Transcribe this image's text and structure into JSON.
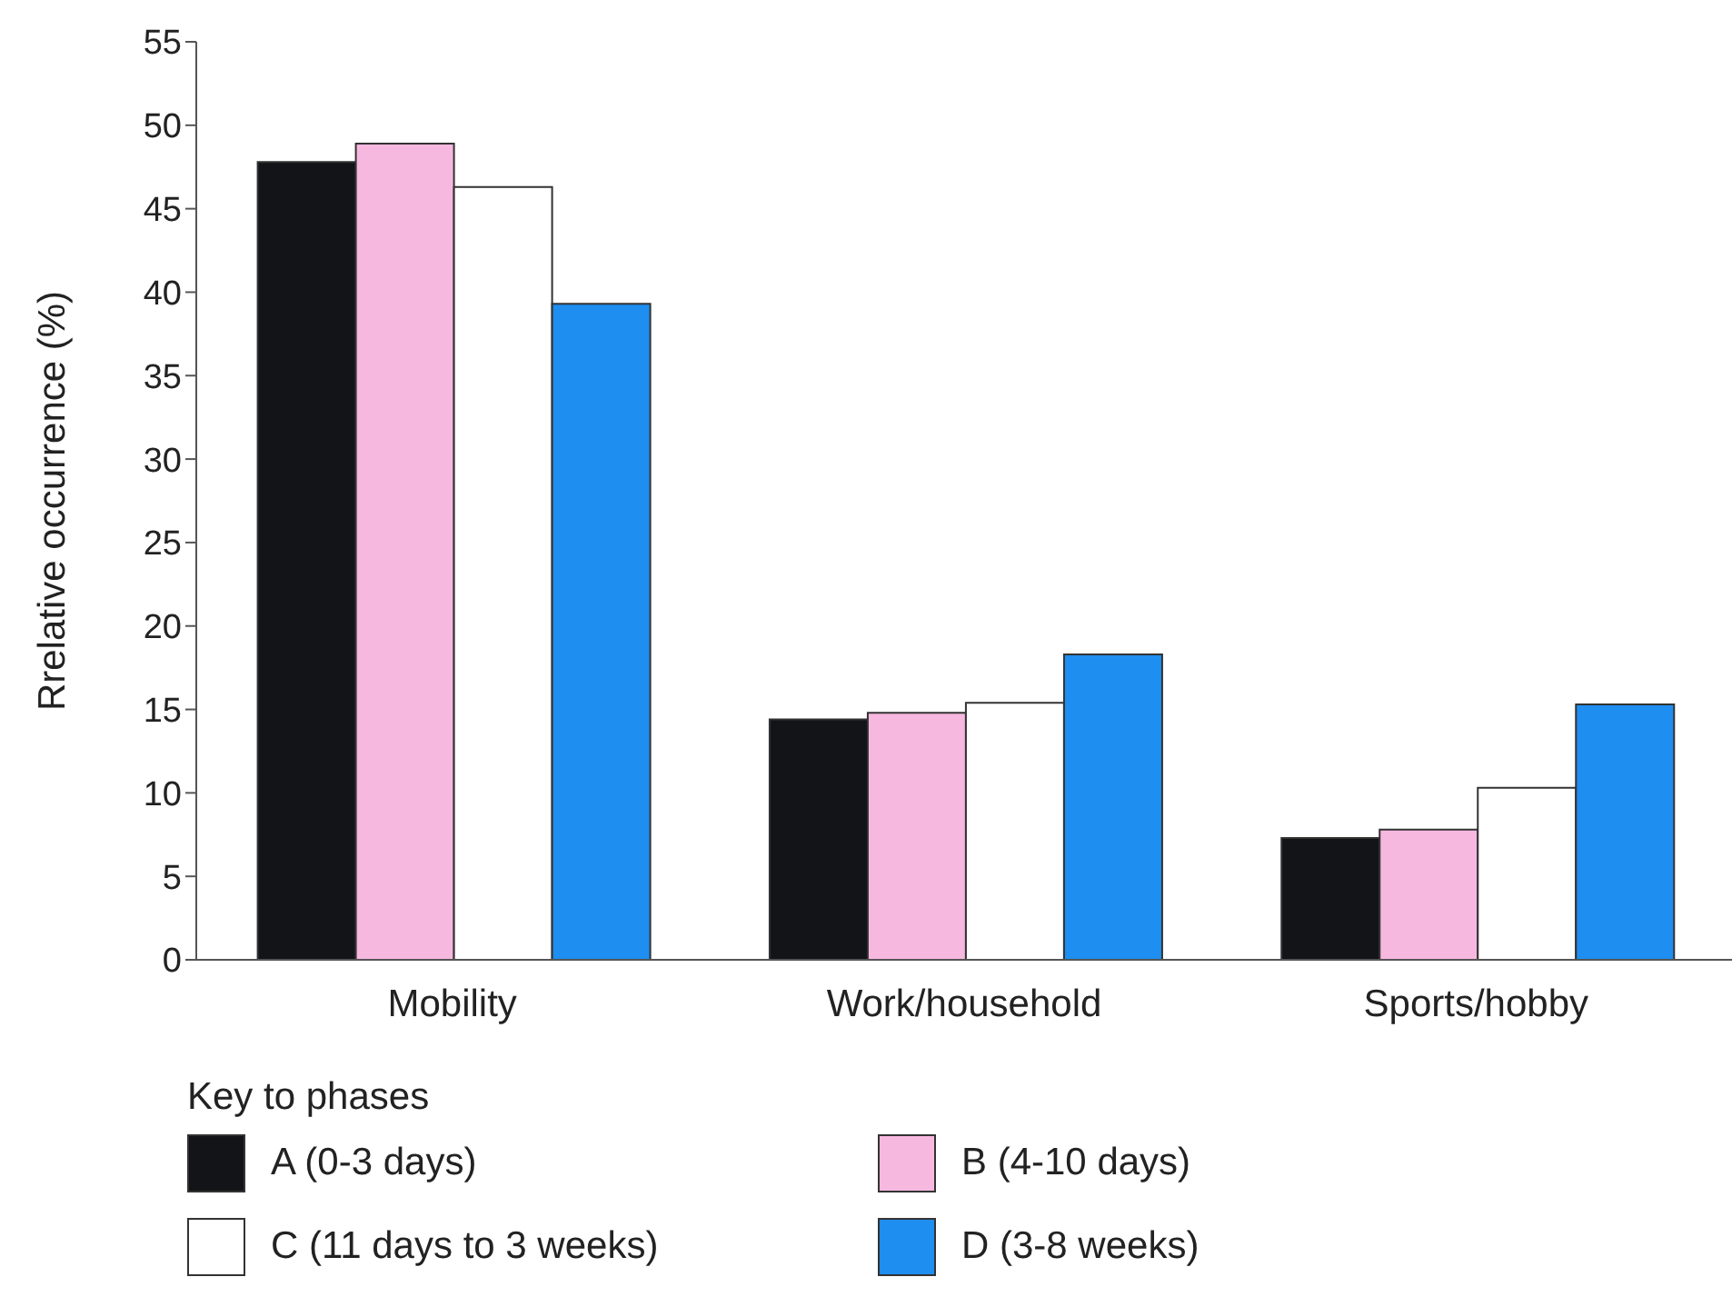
{
  "chart_data": {
    "type": "bar",
    "ylabel": "Rrelative occurrence (%)",
    "legend_title": "Key to phases",
    "categories": [
      "Mobility",
      "Work/household",
      "Sports/hobby"
    ],
    "series": [
      {
        "name": "A (0-3 days)",
        "color": "#121418",
        "values": [
          47.8,
          14.4,
          7.3
        ]
      },
      {
        "name": "B (4-10 days)",
        "color": "#f7b8e0",
        "values": [
          48.9,
          14.8,
          7.8
        ]
      },
      {
        "name": "C (11 days to 3 weeks)",
        "color": "#ffffff",
        "values": [
          46.3,
          15.4,
          10.3
        ]
      },
      {
        "name": "D (3-8 weeks)",
        "color": "#1e8ef0",
        "values": [
          39.3,
          18.3,
          15.3
        ]
      }
    ],
    "ylim": [
      0,
      55
    ],
    "yticks": [
      0,
      5,
      10,
      15,
      20,
      25,
      30,
      35,
      40,
      45,
      50,
      55
    ],
    "legend": "bottom",
    "grid": false
  }
}
